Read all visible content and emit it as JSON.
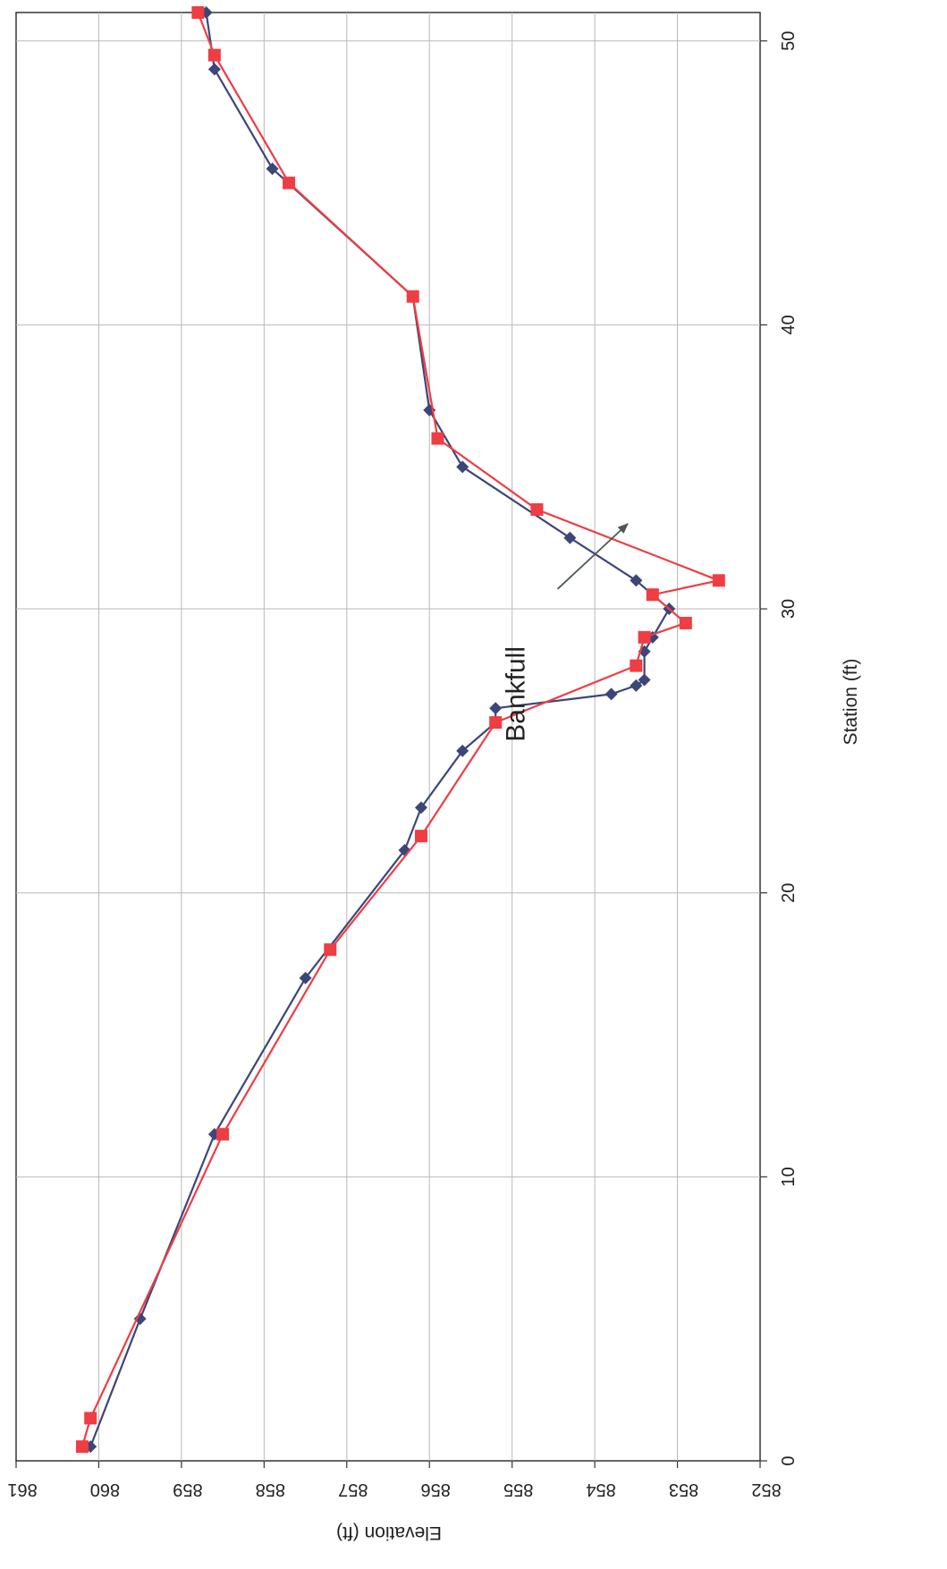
{
  "chart_data": {
    "type": "line",
    "title": "",
    "xlabel": "Station (ft)",
    "ylabel": "Elevation (ft)",
    "xlim": [
      0,
      51
    ],
    "ylim": [
      852,
      861
    ],
    "x_ticks": [
      "0",
      "10",
      "20",
      "30",
      "40",
      "50"
    ],
    "y_ticks": [
      "852",
      "853",
      "854",
      "855",
      "856",
      "857",
      "858",
      "859",
      "860",
      "861"
    ],
    "grid": true,
    "series": [
      {
        "color": "#3d4678",
        "marker": "diamond",
        "x": [
          0.5,
          5,
          11.5,
          17,
          21.5,
          23,
          25,
          26,
          26.5,
          27,
          27.3,
          27.5,
          28.5,
          29,
          30,
          30.5,
          31,
          32.5,
          35,
          37,
          41,
          45.5,
          49,
          51
        ],
        "y": [
          860.1,
          859.5,
          858.6,
          857.5,
          856.3,
          856.1,
          855.6,
          855.2,
          855.2,
          853.8,
          853.5,
          853.4,
          853.4,
          853.3,
          853.1,
          853.3,
          853.5,
          854.3,
          855.6,
          856.0,
          856.2,
          857.9,
          858.6,
          858.7
        ]
      },
      {
        "color": "#ee3d43",
        "marker": "square",
        "x": [
          0.5,
          1.5,
          11.5,
          18,
          22,
          26,
          28,
          29,
          29.5,
          30.5,
          31,
          33.5,
          36,
          41,
          45,
          49.5,
          51
        ],
        "y": [
          860.2,
          860.1,
          858.5,
          857.2,
          856.1,
          855.2,
          853.5,
          853.4,
          852.9,
          853.3,
          852.5,
          854.7,
          855.9,
          856.2,
          857.7,
          858.6,
          858.8
        ]
      }
    ],
    "annotations": [
      {
        "text": "Bankfull",
        "x": 27,
        "y": 854.7,
        "arrow_to_x": 33,
        "arrow_to_y": 853.6
      }
    ]
  }
}
